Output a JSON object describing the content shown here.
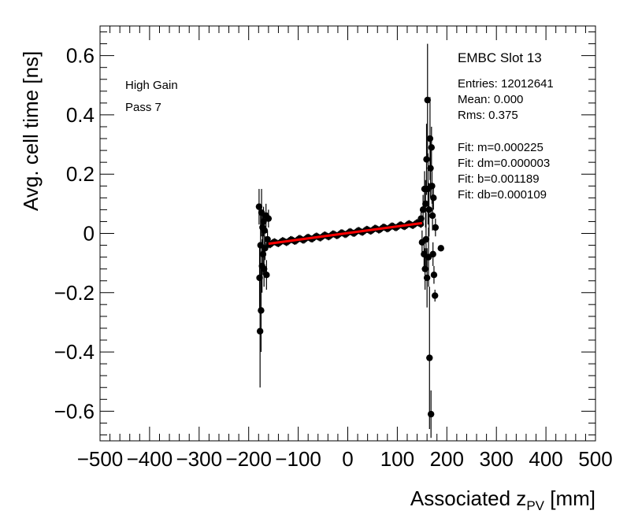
{
  "chart_data": {
    "type": "scatter",
    "title": "EMBC Slot 13",
    "xlabel_main": "Associated z",
    "xlabel_sub": "PV",
    "xlabel_unit": " [mm]",
    "ylabel": "Avg. cell time [ns]",
    "xlim": [
      -500,
      500
    ],
    "ylim": [
      -0.7,
      0.7
    ],
    "x_ticks": [
      -500,
      -400,
      -300,
      -200,
      -100,
      0,
      100,
      200,
      300,
      400,
      500
    ],
    "x_tick_labels": [
      "−500",
      "−400",
      "−300",
      "−200",
      "−100",
      "0",
      "100",
      "200",
      "300",
      "400",
      "500"
    ],
    "y_ticks": [
      -0.6,
      -0.4,
      -0.2,
      0,
      0.2,
      0.4,
      0.6
    ],
    "y_tick_labels": [
      "−0.6",
      "−0.4",
      "−0.2",
      "0",
      "0.2",
      "0.4",
      "0.6"
    ],
    "annotations": [
      "High Gain",
      "Pass 7"
    ],
    "stats": {
      "entries": "Entries: 12012641",
      "mean": "Mean: 0.000",
      "rms": "Rms: 0.375",
      "fit_m": "Fit: m=0.000225",
      "fit_dm": "Fit: dm=0.000003",
      "fit_b": "Fit: b=0.001189",
      "fit_db": "Fit: db=0.000109"
    },
    "fit": {
      "m": 0.000225,
      "b": 0.001189,
      "x_range": [
        -160,
        150
      ],
      "color": "#ff0000"
    },
    "points": [
      {
        "x": -179,
        "y": 0.09,
        "err": 0.06
      },
      {
        "x": -178,
        "y": -0.15,
        "err": 0.12
      },
      {
        "x": -177,
        "y": -0.33,
        "err": 0.19
      },
      {
        "x": -176,
        "y": -0.04,
        "err": 0.1
      },
      {
        "x": -175,
        "y": -0.26,
        "err": 0.14
      },
      {
        "x": -174,
        "y": 0.07,
        "err": 0.08
      },
      {
        "x": -173,
        "y": -0.11,
        "err": 0.09
      },
      {
        "x": -172,
        "y": 0.02,
        "err": 0.06
      },
      {
        "x": -171,
        "y": -0.07,
        "err": 0.07
      },
      {
        "x": -170,
        "y": 0.04,
        "err": 0.05
      },
      {
        "x": -169,
        "y": -0.12,
        "err": 0.06
      },
      {
        "x": -168,
        "y": 0.01,
        "err": 0.05
      },
      {
        "x": -167,
        "y": -0.05,
        "err": 0.04
      },
      {
        "x": -165,
        "y": 0.06,
        "err": 0.04
      },
      {
        "x": -164,
        "y": -0.14,
        "err": 0.05
      },
      {
        "x": -162,
        "y": -0.02,
        "err": 0.03
      },
      {
        "x": -160,
        "y": 0.05,
        "err": 0.03
      },
      {
        "x": 148,
        "y": 0.05,
        "err": 0.03
      },
      {
        "x": 150,
        "y": -0.03,
        "err": 0.04
      },
      {
        "x": 152,
        "y": 0.08,
        "err": 0.05
      },
      {
        "x": 154,
        "y": -0.07,
        "err": 0.05
      },
      {
        "x": 155,
        "y": 0.15,
        "err": 0.06
      },
      {
        "x": 156,
        "y": -0.12,
        "err": 0.07
      },
      {
        "x": 157,
        "y": 0.1,
        "err": 0.08
      },
      {
        "x": 158,
        "y": -0.02,
        "err": 0.09
      },
      {
        "x": 159,
        "y": 0.25,
        "err": 0.12
      },
      {
        "x": 160,
        "y": -0.15,
        "err": 0.1
      },
      {
        "x": 161,
        "y": 0.45,
        "err": 0.19
      },
      {
        "x": 162,
        "y": 0.15,
        "err": 0.12
      },
      {
        "x": 163,
        "y": -0.08,
        "err": 0.1
      },
      {
        "x": 164,
        "y": 0.08,
        "err": 0.09
      },
      {
        "x": 165,
        "y": -0.42,
        "err": 0.24
      },
      {
        "x": 166,
        "y": 0.32,
        "err": 0.14
      },
      {
        "x": 167,
        "y": 0.22,
        "err": 0.1
      },
      {
        "x": 168,
        "y": -0.61,
        "err": 0.08
      },
      {
        "x": 169,
        "y": 0.29,
        "err": 0.07
      },
      {
        "x": 170,
        "y": 0.16,
        "err": 0.06
      },
      {
        "x": 171,
        "y": 0.06,
        "err": 0.05
      },
      {
        "x": 172,
        "y": -0.07,
        "err": 0.04
      },
      {
        "x": 173,
        "y": 0.12,
        "err": 0.04
      },
      {
        "x": 174,
        "y": -0.14,
        "err": 0.03
      },
      {
        "x": 176,
        "y": -0.21,
        "err": 0.02
      },
      {
        "x": 177,
        "y": 0.02,
        "err": 0.03
      },
      {
        "x": 188,
        "y": -0.05,
        "err": 0.0
      }
    ],
    "band": {
      "x_range": [
        -160,
        148
      ],
      "half_width_ns": 0.012
    },
    "marker_color": "#000000",
    "grid": false,
    "stats_position": "top-right",
    "annotation_position": "top-left"
  }
}
